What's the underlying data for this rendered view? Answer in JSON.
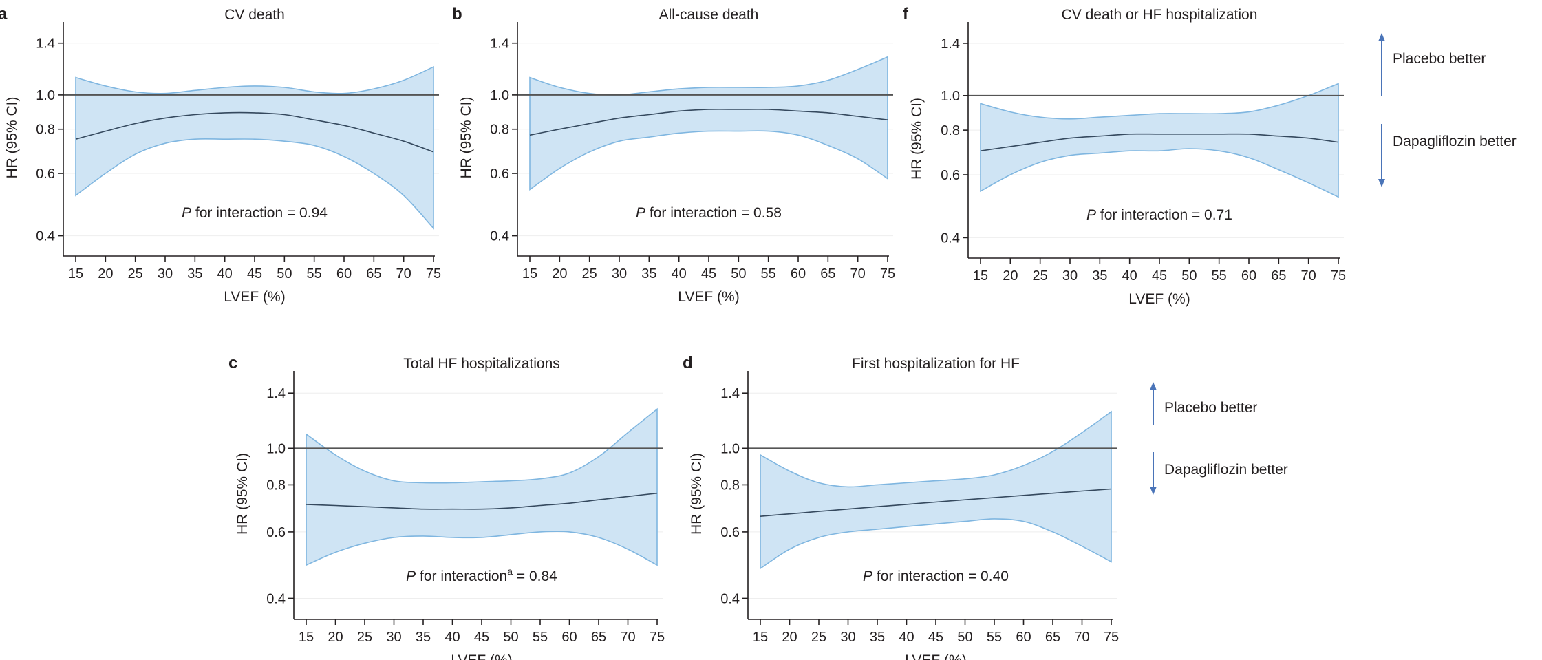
{
  "figure": {
    "colors": {
      "band_fill": "#cfe4f4",
      "band_edge": "#7fb6e0",
      "estimate_line": "#35495e",
      "reference_line": "#555555",
      "arrow": "#4a74b8"
    }
  },
  "chart_data": [
    {
      "letter": "a",
      "type": "area",
      "title": "CV death",
      "xlabel": "LVEF (%)",
      "ylabel": "HR (95% CI)",
      "y_scale": "log",
      "xlim": [
        15,
        75
      ],
      "ylim": [
        0.37,
        1.55
      ],
      "x_ticks": [
        "15",
        "20",
        "25",
        "30",
        "35",
        "40",
        "45",
        "50",
        "55",
        "60",
        "65",
        "70",
        "75"
      ],
      "y_ticks": [
        "0.4",
        "0.6",
        "0.8",
        "1.0",
        "1.4"
      ],
      "reference_y": 1.0,
      "annotation": {
        "p_italic": "P",
        "text": " for interaction = 0.94",
        "superscript": ""
      },
      "x": [
        15,
        20,
        25,
        30,
        35,
        40,
        45,
        50,
        55,
        60,
        65,
        70,
        75
      ],
      "estimate": [
        0.75,
        0.79,
        0.83,
        0.86,
        0.88,
        0.89,
        0.89,
        0.88,
        0.85,
        0.82,
        0.78,
        0.74,
        0.69
      ],
      "lower": [
        0.52,
        0.6,
        0.68,
        0.73,
        0.75,
        0.75,
        0.75,
        0.74,
        0.72,
        0.67,
        0.6,
        0.52,
        0.42
      ],
      "upper": [
        1.12,
        1.06,
        1.02,
        1.01,
        1.03,
        1.05,
        1.06,
        1.05,
        1.02,
        1.01,
        1.04,
        1.1,
        1.2
      ],
      "grid": true
    },
    {
      "letter": "b",
      "type": "area",
      "title": "All-cause death",
      "xlabel": "LVEF (%)",
      "ylabel": "HR (95% CI)",
      "y_scale": "log",
      "xlim": [
        15,
        75
      ],
      "ylim": [
        0.37,
        1.55
      ],
      "x_ticks": [
        "15",
        "20",
        "25",
        "30",
        "35",
        "40",
        "45",
        "50",
        "55",
        "60",
        "65",
        "70",
        "75"
      ],
      "y_ticks": [
        "0.4",
        "0.6",
        "0.8",
        "1.0",
        "1.4"
      ],
      "reference_y": 1.0,
      "annotation": {
        "p_italic": "P",
        "text": " for interaction = 0.58",
        "superscript": ""
      },
      "x": [
        15,
        20,
        25,
        30,
        35,
        40,
        45,
        50,
        55,
        60,
        65,
        70,
        75
      ],
      "estimate": [
        0.77,
        0.8,
        0.83,
        0.86,
        0.88,
        0.9,
        0.91,
        0.91,
        0.91,
        0.9,
        0.89,
        0.87,
        0.85
      ],
      "lower": [
        0.54,
        0.62,
        0.69,
        0.74,
        0.76,
        0.78,
        0.79,
        0.79,
        0.79,
        0.77,
        0.72,
        0.66,
        0.58
      ],
      "upper": [
        1.12,
        1.05,
        1.01,
        1.0,
        1.02,
        1.04,
        1.05,
        1.05,
        1.05,
        1.06,
        1.1,
        1.18,
        1.28
      ],
      "grid": true
    },
    {
      "letter": "f",
      "type": "area",
      "title": "CV death or HF hospitalization",
      "xlabel": "LVEF (%)",
      "ylabel": "HR (95% CI)",
      "y_scale": "log",
      "xlim": [
        15,
        75
      ],
      "ylim": [
        0.37,
        1.55
      ],
      "x_ticks": [
        "15",
        "20",
        "25",
        "30",
        "35",
        "40",
        "45",
        "50",
        "55",
        "60",
        "65",
        "70",
        "75"
      ],
      "y_ticks": [
        "0.4",
        "0.6",
        "0.8",
        "1.0",
        "1.4"
      ],
      "reference_y": 1.0,
      "annotation": {
        "p_italic": "P",
        "text": " for interaction = 0.71",
        "superscript": ""
      },
      "x": [
        15,
        20,
        25,
        30,
        35,
        40,
        45,
        50,
        55,
        60,
        65,
        70,
        75
      ],
      "estimate": [
        0.7,
        0.72,
        0.74,
        0.76,
        0.77,
        0.78,
        0.78,
        0.78,
        0.78,
        0.78,
        0.77,
        0.76,
        0.74
      ],
      "lower": [
        0.54,
        0.6,
        0.65,
        0.68,
        0.69,
        0.7,
        0.7,
        0.71,
        0.7,
        0.67,
        0.62,
        0.57,
        0.52
      ],
      "upper": [
        0.95,
        0.9,
        0.87,
        0.86,
        0.87,
        0.88,
        0.89,
        0.89,
        0.89,
        0.9,
        0.94,
        1.0,
        1.08
      ],
      "grid": true
    },
    {
      "letter": "c",
      "type": "area",
      "title": "Total HF hospitalizations",
      "xlabel": "LVEF (%)",
      "ylabel": "HR (95% CI)",
      "y_scale": "log",
      "xlim": [
        15,
        75
      ],
      "ylim": [
        0.37,
        1.55
      ],
      "x_ticks": [
        "15",
        "20",
        "25",
        "30",
        "35",
        "40",
        "45",
        "50",
        "55",
        "60",
        "65",
        "70",
        "75"
      ],
      "y_ticks": [
        "0.4",
        "0.6",
        "0.8",
        "1.0",
        "1.4"
      ],
      "reference_y": 1.0,
      "annotation": {
        "p_italic": "P",
        "text": " for interaction",
        "superscript": "a",
        "after": " = 0.84"
      },
      "x": [
        15,
        20,
        25,
        30,
        35,
        40,
        45,
        50,
        55,
        60,
        65,
        70,
        75
      ],
      "estimate": [
        0.71,
        0.705,
        0.7,
        0.695,
        0.69,
        0.69,
        0.69,
        0.695,
        0.705,
        0.715,
        0.73,
        0.745,
        0.76
      ],
      "lower": [
        0.49,
        0.53,
        0.56,
        0.58,
        0.585,
        0.58,
        0.58,
        0.59,
        0.6,
        0.6,
        0.58,
        0.54,
        0.49
      ],
      "upper": [
        1.09,
        0.96,
        0.87,
        0.82,
        0.81,
        0.81,
        0.815,
        0.82,
        0.83,
        0.86,
        0.95,
        1.1,
        1.27
      ],
      "grid": true
    },
    {
      "letter": "d",
      "type": "area",
      "title": "First hospitalization for HF",
      "xlabel": "LVEF (%)",
      "ylabel": "HR (95% CI)",
      "y_scale": "log",
      "xlim": [
        15,
        75
      ],
      "ylim": [
        0.37,
        1.55
      ],
      "x_ticks": [
        "15",
        "20",
        "25",
        "30",
        "35",
        "40",
        "45",
        "50",
        "55",
        "60",
        "65",
        "70",
        "75"
      ],
      "y_ticks": [
        "0.4",
        "0.6",
        "0.8",
        "1.0",
        "1.4"
      ],
      "reference_y": 1.0,
      "annotation": {
        "p_italic": "P",
        "text": " for interaction = 0.40",
        "superscript": ""
      },
      "x": [
        15,
        20,
        25,
        30,
        35,
        40,
        45,
        50,
        55,
        60,
        65,
        70,
        75
      ],
      "estimate": [
        0.66,
        0.67,
        0.68,
        0.69,
        0.7,
        0.71,
        0.72,
        0.73,
        0.74,
        0.75,
        0.76,
        0.77,
        0.78
      ],
      "lower": [
        0.48,
        0.54,
        0.58,
        0.6,
        0.61,
        0.62,
        0.63,
        0.64,
        0.65,
        0.64,
        0.6,
        0.55,
        0.5
      ],
      "upper": [
        0.96,
        0.87,
        0.81,
        0.79,
        0.8,
        0.81,
        0.82,
        0.83,
        0.85,
        0.9,
        0.98,
        1.1,
        1.25
      ]
    }
  ],
  "legends": [
    {
      "placebo": "Placebo better",
      "dapa": "Dapagliflozin better"
    },
    {
      "placebo": "Placebo better",
      "dapa": "Dapagliflozin better"
    }
  ]
}
